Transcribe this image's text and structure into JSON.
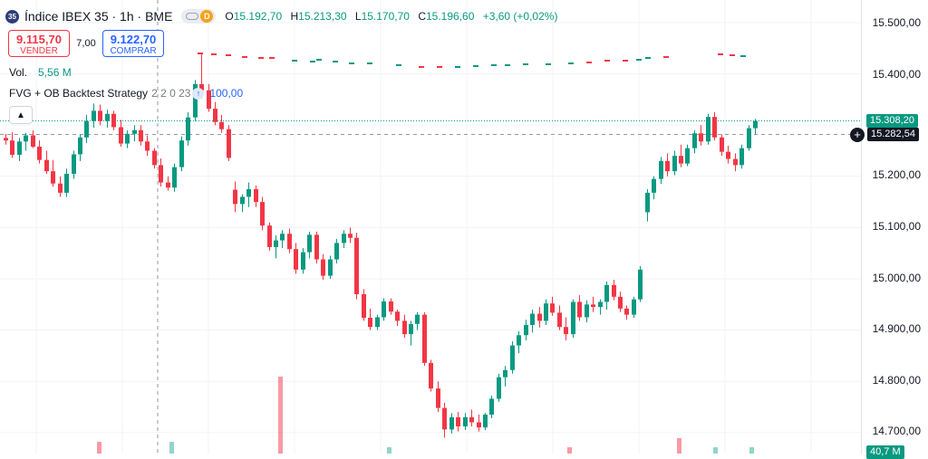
{
  "header": {
    "badge": "35",
    "title": "Índice IBEX 35 · 1h · BME",
    "delayed_badge": "D",
    "ohlc": [
      {
        "key": "O",
        "value": "15.192,70"
      },
      {
        "key": "H",
        "value": "15.213,30"
      },
      {
        "key": "L",
        "value": "15.170,70"
      },
      {
        "key": "C",
        "value": "15.196,60"
      }
    ],
    "change": "+3,60 (+0,02%)"
  },
  "trade": {
    "sell_price": "9.115,70",
    "sell_label": "VENDER",
    "spread": "7,00",
    "buy_price": "9.122,70",
    "buy_label": "COMPRAR"
  },
  "volume": {
    "label": "Vol.",
    "value": "5,56 M"
  },
  "strategy": {
    "name": "FVG + OB Backtest Strategy",
    "params": "2 2 0 23",
    "value": "100,00"
  },
  "price_axis": {
    "labels": [
      "15.500,00",
      "15.400,00",
      "15.300,00",
      "15.200,00",
      "15.100,00",
      "15.000,00",
      "14.900,00",
      "14.800,00",
      "14.700,00"
    ],
    "last_price": "15.308,20",
    "crosshair_price": "15.282,54",
    "volume_label": "40,7 M"
  },
  "colors": {
    "up": "#089981",
    "down": "#f23645",
    "accent": "#2962ff"
  },
  "chart_data": {
    "type": "candlestick",
    "title": "Índice IBEX 35 · 1h · BME",
    "ylim": [
      14690,
      15530
    ],
    "grid": true,
    "candles": [
      [
        15275,
        15283,
        15262,
        15270
      ],
      [
        15270,
        15286,
        15236,
        15242
      ],
      [
        15242,
        15275,
        15230,
        15268
      ],
      [
        15268,
        15285,
        15250,
        15280
      ],
      [
        15280,
        15290,
        15255,
        15258
      ],
      [
        15258,
        15270,
        15225,
        15232
      ],
      [
        15232,
        15250,
        15205,
        15210
      ],
      [
        15210,
        15232,
        15180,
        15186
      ],
      [
        15186,
        15200,
        15160,
        15168
      ],
      [
        15168,
        15215,
        15160,
        15205
      ],
      [
        15205,
        15250,
        15195,
        15243
      ],
      [
        15243,
        15282,
        15230,
        15276
      ],
      [
        15276,
        15320,
        15265,
        15308
      ],
      [
        15308,
        15342,
        15295,
        15328
      ],
      [
        15328,
        15340,
        15300,
        15308
      ],
      [
        15308,
        15330,
        15295,
        15322
      ],
      [
        15322,
        15328,
        15290,
        15296
      ],
      [
        15296,
        15310,
        15258,
        15264
      ],
      [
        15264,
        15290,
        15255,
        15283
      ],
      [
        15283,
        15300,
        15268,
        15290
      ],
      [
        15290,
        15300,
        15260,
        15268
      ],
      [
        15268,
        15280,
        15240,
        15250
      ],
      [
        15250,
        15255,
        15215,
        15222
      ],
      [
        15222,
        15235,
        15180,
        15188
      ],
      [
        15188,
        15200,
        15172,
        15178
      ],
      [
        15178,
        15225,
        15170,
        15218
      ],
      [
        15218,
        15278,
        15210,
        15270
      ],
      [
        15270,
        15325,
        15260,
        15315
      ],
      [
        15315,
        15388,
        15308,
        15380
      ],
      [
        15380,
        15440,
        15352,
        15368
      ],
      [
        15368,
        15380,
        15326,
        15332
      ],
      [
        15332,
        15345,
        15300,
        15306
      ],
      [
        15306,
        15320,
        15285,
        15292
      ],
      [
        15292,
        15300,
        15230,
        15236
      ],
      [
        15174,
        15190,
        15130,
        15146
      ],
      [
        15146,
        15165,
        15130,
        15160
      ],
      [
        15160,
        15188,
        15140,
        15175
      ],
      [
        15175,
        15182,
        15140,
        15150
      ],
      [
        15150,
        15160,
        15095,
        15104
      ],
      [
        15104,
        15110,
        15055,
        15062
      ],
      [
        15062,
        15085,
        15040,
        15075
      ],
      [
        15075,
        15095,
        15060,
        15088
      ],
      [
        15088,
        15098,
        15050,
        15058
      ],
      [
        15058,
        15070,
        15010,
        15018
      ],
      [
        15018,
        15060,
        15010,
        15052
      ],
      [
        15052,
        15092,
        15040,
        15086
      ],
      [
        15086,
        15092,
        15030,
        15038
      ],
      [
        15038,
        15048,
        14998,
        15006
      ],
      [
        15006,
        15045,
        15000,
        15038
      ],
      [
        15038,
        15078,
        15030,
        15070
      ],
      [
        15070,
        15095,
        15060,
        15088
      ],
      [
        15088,
        15100,
        15070,
        15080
      ],
      [
        15080,
        15090,
        14960,
        14970
      ],
      [
        14970,
        14980,
        14918,
        14924
      ],
      [
        14924,
        14942,
        14900,
        14906
      ],
      [
        14906,
        14930,
        14900,
        14925
      ],
      [
        14925,
        14962,
        14918,
        14956
      ],
      [
        14956,
        14962,
        14930,
        14936
      ],
      [
        14936,
        14940,
        14908,
        14918
      ],
      [
        14918,
        14930,
        14885,
        14892
      ],
      [
        14892,
        14918,
        14870,
        14912
      ],
      [
        14912,
        14935,
        14900,
        14930
      ],
      [
        14930,
        14935,
        14830,
        14836
      ],
      [
        14836,
        14842,
        14780,
        14786
      ],
      [
        14786,
        14800,
        14740,
        14748
      ],
      [
        14748,
        14758,
        14690,
        14706
      ],
      [
        14706,
        14738,
        14698,
        14730
      ],
      [
        14730,
        14740,
        14702,
        14712
      ],
      [
        14712,
        14738,
        14705,
        14730
      ],
      [
        14730,
        14745,
        14712,
        14720
      ],
      [
        14720,
        14735,
        14702,
        14710
      ],
      [
        14710,
        14738,
        14705,
        14735
      ],
      [
        14735,
        14772,
        14728,
        14766
      ],
      [
        14766,
        14815,
        14760,
        14808
      ],
      [
        14808,
        14830,
        14790,
        14822
      ],
      [
        14822,
        14878,
        14815,
        14870
      ],
      [
        14870,
        14898,
        14855,
        14890
      ],
      [
        14890,
        14920,
        14880,
        14910
      ],
      [
        14910,
        14940,
        14895,
        14932
      ],
      [
        14932,
        14945,
        14905,
        14918
      ],
      [
        14918,
        14960,
        14910,
        14952
      ],
      [
        14952,
        14965,
        14928,
        14934
      ],
      [
        14934,
        14948,
        14900,
        14906
      ],
      [
        14906,
        14925,
        14880,
        14892
      ],
      [
        14892,
        14960,
        14885,
        14955
      ],
      [
        14955,
        14968,
        14918,
        14925
      ],
      [
        14925,
        14958,
        14915,
        14950
      ],
      [
        14950,
        14965,
        14935,
        14945
      ],
      [
        14945,
        14960,
        14930,
        14955
      ],
      [
        14955,
        14995,
        14940,
        14988
      ],
      [
        14988,
        14998,
        14958,
        14965
      ],
      [
        14965,
        14975,
        14935,
        14942
      ],
      [
        14942,
        14948,
        14920,
        14930
      ],
      [
        14930,
        14965,
        14924,
        14960
      ],
      [
        14960,
        15025,
        14955,
        15018
      ],
      [
        15130,
        15175,
        15112,
        15168
      ],
      [
        15168,
        15200,
        15155,
        15195
      ],
      [
        15195,
        15238,
        15185,
        15230
      ],
      [
        15230,
        15245,
        15200,
        15210
      ],
      [
        15210,
        15250,
        15202,
        15240
      ],
      [
        15240,
        15262,
        15218,
        15225
      ],
      [
        15225,
        15262,
        15220,
        15255
      ],
      [
        15255,
        15290,
        15245,
        15284
      ],
      [
        15284,
        15300,
        15260,
        15268
      ],
      [
        15268,
        15322,
        15262,
        15316
      ],
      [
        15316,
        15325,
        15270,
        15276
      ],
      [
        15276,
        15282,
        15240,
        15248
      ],
      [
        15248,
        15260,
        15225,
        15234
      ],
      [
        15234,
        15245,
        15210,
        15222
      ],
      [
        15222,
        15262,
        15215,
        15255
      ],
      [
        15255,
        15300,
        15250,
        15294
      ],
      [
        15294,
        15312,
        15282,
        15308
      ]
    ]
  }
}
